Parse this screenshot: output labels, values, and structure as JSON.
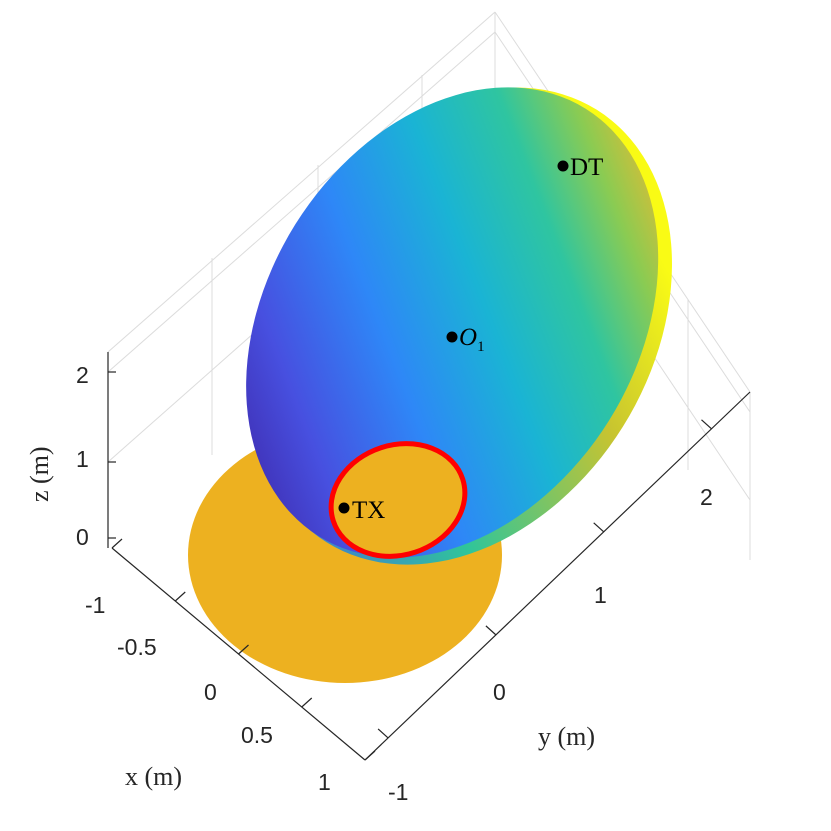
{
  "chart_data": {
    "type": "surface3d",
    "xlabel": "x (m)",
    "ylabel": "y (m)",
    "zlabel": "z (m)",
    "xticks": [
      "-1",
      "-0.5",
      "0",
      "0.5",
      "1"
    ],
    "yticks": [
      "-1",
      "0",
      "1",
      "2"
    ],
    "zticks": [
      "0",
      "1",
      "2"
    ],
    "xlim": [
      -1,
      1
    ],
    "ylim": [
      -1,
      3
    ],
    "zlim": [
      0,
      2.3
    ],
    "grid": true,
    "colormap": "parula",
    "surfaces": [
      {
        "kind": "ground-disk",
        "color": "#edb120"
      },
      {
        "kind": "ellipsoidal-shell",
        "colormap": "parula"
      },
      {
        "kind": "boundary-ellipse",
        "color": "#ff0000"
      }
    ],
    "points": [
      {
        "label": "DT",
        "x": 0.0,
        "y": 2.0,
        "z": 2.0
      },
      {
        "label": "O1",
        "x": 0.0,
        "y": 1.0,
        "z": 1.1
      },
      {
        "label": "TX",
        "x": 0.0,
        "y": 0.0,
        "z": 0.0
      }
    ],
    "colors": {
      "ground": "#edb120",
      "boundary": "#ff0000",
      "marker": "#000000"
    }
  }
}
